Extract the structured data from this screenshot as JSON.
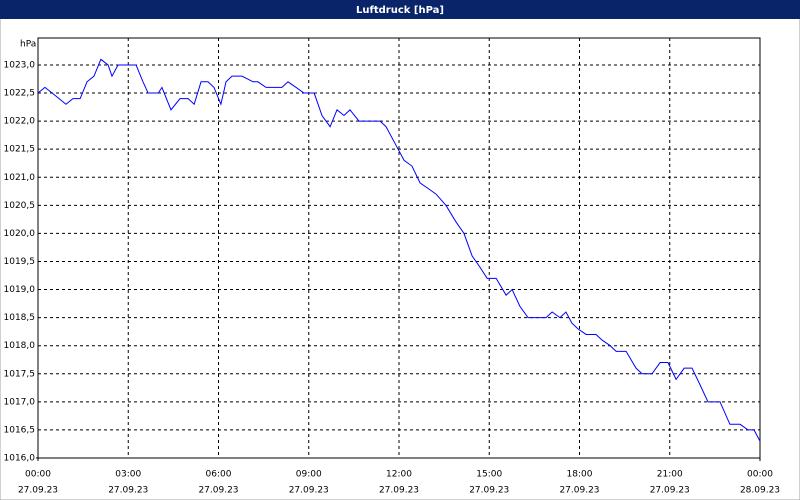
{
  "chart_data": {
    "type": "line",
    "title": "Luftdruck [hPa]",
    "y_label": "hPa",
    "x": [
      0,
      0.23,
      0.47,
      0.7,
      0.93,
      1.16,
      1.4,
      1.63,
      1.86,
      2.09,
      2.33,
      2.46,
      2.66,
      2.86,
      3.26,
      3.49,
      3.66,
      4.0,
      4.12,
      4.42,
      4.72,
      4.99,
      5.19,
      5.42,
      5.65,
      5.85,
      6.08,
      6.25,
      6.45,
      6.78,
      7.15,
      7.31,
      7.58,
      8.11,
      8.31,
      8.58,
      8.84,
      9.18,
      9.44,
      9.71,
      9.94,
      10.17,
      10.37,
      10.67,
      11.37,
      11.57,
      11.77,
      11.97,
      12.17,
      12.43,
      12.7,
      12.97,
      13.23,
      13.56,
      13.9,
      14.16,
      14.43,
      14.69,
      14.93,
      15.23,
      15.56,
      15.76,
      16.02,
      16.29,
      16.89,
      17.09,
      17.35,
      17.55,
      17.75,
      17.95,
      18.22,
      18.55,
      18.75,
      19.02,
      19.22,
      19.55,
      19.88,
      20.08,
      20.41,
      20.68,
      20.94,
      21.21,
      21.48,
      21.74,
      22.01,
      22.27,
      22.67,
      23.0,
      23.34,
      23.6,
      23.8,
      24.0
    ],
    "series": [
      {
        "name": "Luftdruck",
        "color": "#0000ff",
        "values": [
          1022.5,
          1022.6,
          1022.5,
          1022.4,
          1022.3,
          1022.4,
          1022.4,
          1022.7,
          1022.8,
          1023.1,
          1023.0,
          1022.8,
          1023.0,
          1023.0,
          1023.0,
          1022.7,
          1022.5,
          1022.5,
          1022.6,
          1022.2,
          1022.4,
          1022.4,
          1022.3,
          1022.7,
          1022.7,
          1022.6,
          1022.3,
          1022.7,
          1022.8,
          1022.8,
          1022.7,
          1022.7,
          1022.6,
          1022.6,
          1022.7,
          1022.6,
          1022.5,
          1022.5,
          1022.1,
          1021.9,
          1022.2,
          1022.1,
          1022.2,
          1022.0,
          1022.0,
          1021.9,
          1021.7,
          1021.5,
          1021.3,
          1021.2,
          1020.9,
          1020.8,
          1020.7,
          1020.5,
          1020.2,
          1020.0,
          1019.6,
          1019.4,
          1019.2,
          1019.2,
          1018.9,
          1019.0,
          1018.7,
          1018.5,
          1018.5,
          1018.6,
          1018.5,
          1018.6,
          1018.4,
          1018.3,
          1018.2,
          1018.2,
          1018.1,
          1018.0,
          1017.9,
          1017.9,
          1017.6,
          1017.5,
          1017.5,
          1017.7,
          1017.7,
          1017.4,
          1017.6,
          1017.6,
          1017.3,
          1017.0,
          1017.0,
          1016.6,
          1016.6,
          1016.5,
          1016.5,
          1016.3
        ]
      }
    ],
    "xlim": [
      0,
      24
    ],
    "xticks": [
      {
        "value": 0,
        "label": "00:00",
        "date": "27.09.23"
      },
      {
        "value": 3,
        "label": "03:00",
        "date": "27.09.23"
      },
      {
        "value": 6,
        "label": "06:00",
        "date": "27.09.23"
      },
      {
        "value": 9,
        "label": "09:00",
        "date": "27.09.23"
      },
      {
        "value": 12,
        "label": "12:00",
        "date": "27.09.23"
      },
      {
        "value": 15,
        "label": "15:00",
        "date": "27.09.23"
      },
      {
        "value": 18,
        "label": "18:00",
        "date": "27.09.23"
      },
      {
        "value": 21,
        "label": "21:00",
        "date": "27.09.23"
      },
      {
        "value": 24,
        "label": "00:00",
        "date": "28.09.23"
      }
    ],
    "ylim": [
      1016,
      1023.48
    ],
    "yticks": [
      {
        "value": 1016,
        "label": "1016,0"
      },
      {
        "value": 1016.5,
        "label": "1016,5"
      },
      {
        "value": 1017,
        "label": "1017,0"
      },
      {
        "value": 1017.5,
        "label": "1017,5"
      },
      {
        "value": 1018,
        "label": "1018,0"
      },
      {
        "value": 1018.5,
        "label": "1018,5"
      },
      {
        "value": 1019,
        "label": "1019,0"
      },
      {
        "value": 1019.5,
        "label": "1019,5"
      },
      {
        "value": 1020,
        "label": "1020,0"
      },
      {
        "value": 1020.5,
        "label": "1020,5"
      },
      {
        "value": 1021,
        "label": "1021,0"
      },
      {
        "value": 1021.5,
        "label": "1021,5"
      },
      {
        "value": 1022,
        "label": "1022,0"
      },
      {
        "value": 1022.5,
        "label": "1022,5"
      },
      {
        "value": 1023,
        "label": "1023,0"
      }
    ],
    "grid": true
  }
}
